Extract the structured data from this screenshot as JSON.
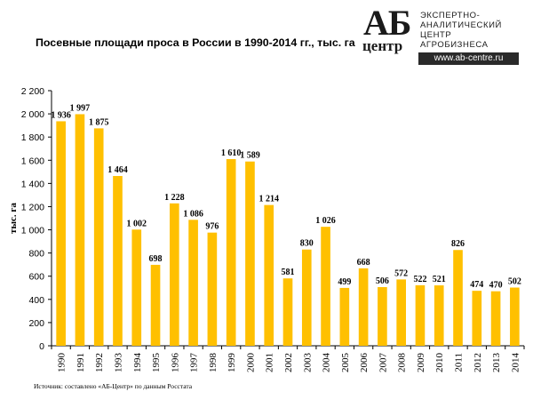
{
  "header": {
    "title": "Посевные площади проса в России в 1990-2014 гг., тыс. га"
  },
  "logo": {
    "big": "АБ",
    "small": "центр",
    "lines": [
      "ЭКСПЕРТНО-",
      "АНАЛИТИЧЕСКИЙ",
      "ЦЕНТР",
      "АГРОБИЗНЕСА"
    ],
    "url": "www.ab-centre.ru"
  },
  "footer": {
    "source": "Источник:  составлено «АБ-Центр»   по данным Росстата"
  },
  "chart_data": {
    "type": "bar",
    "title": "Посевные площади проса в России в 1990-2014 гг., тыс. га",
    "xlabel": "",
    "ylabel": "тыс. га",
    "ylim": [
      0,
      2200
    ],
    "yticks": [
      0,
      200,
      400,
      600,
      800,
      1000,
      1200,
      1400,
      1600,
      1800,
      2000,
      2200
    ],
    "ytick_labels": [
      "0",
      "200",
      "400",
      "600",
      "800",
      "1 000",
      "1 200",
      "1 400",
      "1 600",
      "1 800",
      "2 000",
      "2 200"
    ],
    "grid": false,
    "bar_color": "#FFC000",
    "categories": [
      "1990",
      "1991",
      "1992",
      "1993",
      "1994",
      "1995",
      "1996",
      "1997",
      "1998",
      "1999",
      "2000",
      "2001",
      "2002",
      "2003",
      "2004",
      "2005",
      "2006",
      "2007",
      "2008",
      "2009",
      "2010",
      "2011",
      "2012",
      "2013",
      "2014"
    ],
    "values": [
      1936,
      1997,
      1875,
      1464,
      1002,
      698,
      1228,
      1086,
      976,
      1610,
      1589,
      1214,
      581,
      830,
      1026,
      499,
      668,
      506,
      572,
      522,
      521,
      826,
      474,
      470,
      502
    ],
    "value_labels": [
      "1 936",
      "1 997",
      "1 875",
      "1 464",
      "1 002",
      "698",
      "1 228",
      "1 086",
      "976",
      "1 610",
      "1 589",
      "1 214",
      "581",
      "830",
      "1 026",
      "499",
      "668",
      "506",
      "572",
      "522",
      "521",
      "826",
      "474",
      "470",
      "502"
    ]
  }
}
